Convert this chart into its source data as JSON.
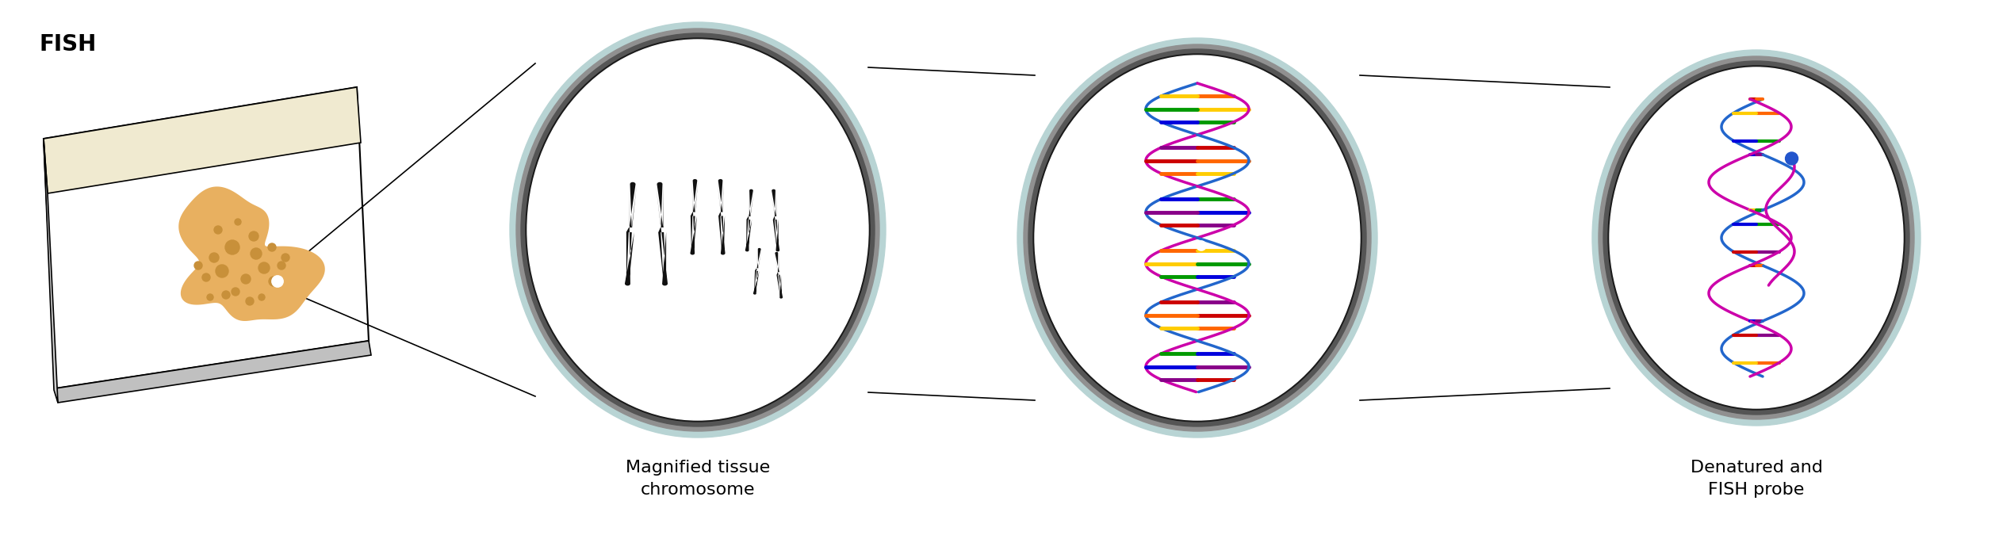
{
  "title": "FISH",
  "label1": "Magnified tissue\nchromosome",
  "label2": "Denatured and\nFISH probe",
  "bg_color": "#ffffff",
  "slide_top_color": "#f0ead0",
  "slide_body_color": "#ffffff",
  "slide_side_color": "#c0c0c0",
  "cell_color": "#e8b060",
  "cell_spot_color": "#c8903a",
  "ring_outer_color": "#b8d4d4",
  "chromosome_color": "#111111",
  "dna_colors": [
    "#cc0000",
    "#ff6600",
    "#ffcc00",
    "#009900",
    "#0000dd",
    "#880088"
  ],
  "dna_backbone1": "#cc00aa",
  "dna_backbone2": "#2266cc",
  "font_title_size": 20,
  "font_label_size": 16
}
